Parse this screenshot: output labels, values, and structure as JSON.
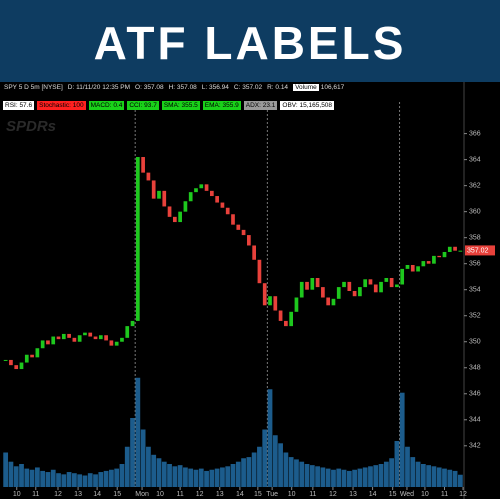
{
  "banner": {
    "title": "ATF LABELS"
  },
  "header": {
    "symbol": "SPY 5 D 5m [NYSE]",
    "date": "D: 11/11/20 12:35 PM",
    "open": "O: 357.08",
    "high": "H: 357.08",
    "low": "L: 356.94",
    "close": "C: 357.02",
    "range": "R: 0.14",
    "volume": "Volume",
    "volume_value": "106,617"
  },
  "labels": [
    {
      "text": "RSI: 57.6",
      "color": "#ffffff"
    },
    {
      "text": "Stochastic: 100",
      "color": "#ff2020"
    },
    {
      "text": "MACD: 0.4",
      "color": "#19d219"
    },
    {
      "text": "CCI: 93.7",
      "color": "#19d219"
    },
    {
      "text": "SMA: 355.5",
      "color": "#19d219"
    },
    {
      "text": "EMA: 355.9",
      "color": "#19d219"
    },
    {
      "text": "ADX: 23.1",
      "color": "#9a9a9a"
    },
    {
      "text": "OBV: 15,165,508",
      "color": "#ffffff"
    }
  ],
  "watermark": "SPDRs",
  "chart_data": {
    "type": "candlestick",
    "ylim": [
      341.6,
      367.2
    ],
    "yticks": [
      342,
      344,
      346,
      348,
      350,
      352,
      354,
      356,
      358,
      360,
      362,
      364,
      366
    ],
    "volume_lim": [
      0,
      1000000
    ],
    "last_price": 357.02,
    "last_price_label": "357.02",
    "up_color": "#1ec81e",
    "down_color": "#e8413b",
    "volume_color": "#1c5c8c",
    "days": [
      {
        "closes": [
          348.6,
          348.2,
          347.9,
          348.4,
          349.0,
          348.8,
          349.5,
          350.1,
          349.8,
          350.4,
          350.2,
          350.6,
          350.3,
          350.0,
          350.5,
          350.7,
          350.4,
          350.2,
          350.5,
          350.1,
          349.7,
          350.0,
          350.3,
          351.2,
          351.6
        ],
        "volumes": [
          300000,
          220000,
          180000,
          200000,
          160000,
          150000,
          170000,
          140000,
          130000,
          150000,
          120000,
          110000,
          130000,
          120000,
          110000,
          100000,
          120000,
          110000,
          130000,
          140000,
          150000,
          160000,
          200000,
          350000,
          600000
        ]
      },
      {
        "closes": [
          364.2,
          363.0,
          362.4,
          361.0,
          361.6,
          360.4,
          359.6,
          359.2,
          360.0,
          360.8,
          361.5,
          361.8,
          362.1,
          361.6,
          361.2,
          360.7,
          360.3,
          359.8,
          359.0,
          358.6,
          358.2,
          357.4,
          356.3,
          354.5,
          352.8
        ],
        "volumes": [
          950000,
          500000,
          350000,
          280000,
          250000,
          220000,
          200000,
          180000,
          190000,
          170000,
          160000,
          150000,
          160000,
          140000,
          150000,
          160000,
          170000,
          180000,
          200000,
          220000,
          250000,
          260000,
          300000,
          350000,
          500000
        ]
      },
      {
        "closes": [
          353.5,
          352.4,
          351.6,
          351.2,
          352.3,
          353.4,
          354.6,
          354.0,
          354.9,
          354.2,
          353.4,
          352.8,
          353.3,
          354.2,
          354.6,
          353.9,
          353.5,
          354.2,
          354.8,
          354.4,
          353.8,
          354.6,
          354.9,
          354.2,
          354.4
        ],
        "volumes": [
          850000,
          450000,
          380000,
          300000,
          260000,
          240000,
          220000,
          200000,
          190000,
          180000,
          170000,
          160000,
          150000,
          160000,
          150000,
          140000,
          150000,
          160000,
          170000,
          180000,
          190000,
          200000,
          220000,
          250000,
          400000
        ]
      },
      {
        "closes": [
          355.6,
          355.9,
          355.4,
          355.8,
          356.2,
          356.0,
          356.6,
          356.5,
          356.9,
          357.3,
          357.0,
          357.0
        ],
        "volumes": [
          820000,
          350000,
          260000,
          220000,
          200000,
          190000,
          180000,
          170000,
          160000,
          150000,
          140000,
          106617
        ]
      }
    ],
    "xticks": [
      {
        "value": 2.1,
        "label": "10"
      },
      {
        "value": 5.7,
        "label": "11"
      },
      {
        "value": 9.9,
        "label": "12"
      },
      {
        "value": 13.7,
        "label": "13"
      },
      {
        "value": 17.3,
        "label": "14"
      },
      {
        "value": 21.1,
        "label": "15"
      },
      {
        "value": 25.8,
        "label": "Mon"
      },
      {
        "value": 29.2,
        "label": "10"
      },
      {
        "value": 33,
        "label": "11"
      },
      {
        "value": 36.7,
        "label": "12"
      },
      {
        "value": 40.5,
        "label": "13"
      },
      {
        "value": 44.3,
        "label": "14"
      },
      {
        "value": 47.7,
        "label": "15"
      },
      {
        "value": 50.4,
        "label": "Tue"
      },
      {
        "value": 54.1,
        "label": "10"
      },
      {
        "value": 58.1,
        "label": "11"
      },
      {
        "value": 61.9,
        "label": "12"
      },
      {
        "value": 65.7,
        "label": "13"
      },
      {
        "value": 69.4,
        "label": "14"
      },
      {
        "value": 73.2,
        "label": "15"
      },
      {
        "value": 75.9,
        "label": "Wed"
      },
      {
        "value": 79.3,
        "label": "10"
      },
      {
        "value": 83,
        "label": "11"
      },
      {
        "value": 86.5,
        "label": "12"
      }
    ]
  }
}
